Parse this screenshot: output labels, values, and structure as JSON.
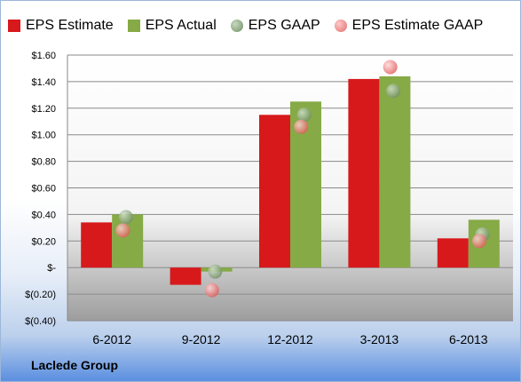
{
  "chart_data": {
    "type": "bar",
    "categories": [
      "6-2012",
      "9-2012",
      "12-2012",
      "3-2013",
      "6-2013"
    ],
    "series": [
      {
        "name": "EPS Estimate",
        "kind": "bar",
        "color": "#d7191c",
        "values": [
          0.34,
          -0.13,
          1.15,
          1.42,
          0.22
        ]
      },
      {
        "name": "EPS Actual",
        "kind": "bar",
        "color": "#86aa46",
        "values": [
          0.4,
          -0.03,
          1.25,
          1.44,
          0.36
        ]
      },
      {
        "name": "EPS GAAP",
        "kind": "marker",
        "color": "#7a9a6a",
        "values": [
          0.38,
          -0.03,
          1.15,
          1.33,
          0.25
        ]
      },
      {
        "name": "EPS Estimate GAAP",
        "kind": "marker",
        "color": "#f07b7b",
        "values": [
          0.28,
          -0.17,
          1.06,
          1.51,
          0.2
        ]
      }
    ],
    "yticks": [
      "$(0.40)",
      "$(0.20)",
      "$-",
      "$0.20",
      "$0.40",
      "$0.60",
      "$0.80",
      "$1.00",
      "$1.20",
      "$1.40",
      "$1.60"
    ],
    "ylim": [
      -0.4,
      1.6
    ],
    "grid": true,
    "legend": "top"
  },
  "footer": {
    "company": "Laclede Group"
  }
}
